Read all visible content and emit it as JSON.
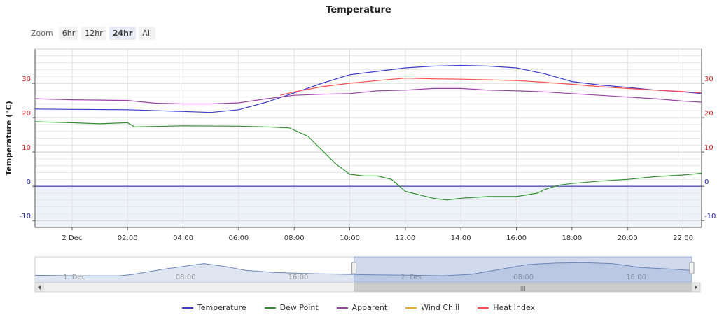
{
  "chart_data": {
    "type": "line",
    "title": "Temperature",
    "ylabel": "Temperature (°C)",
    "ylim": [
      -12,
      40
    ],
    "y_ticks_left": [
      "-10",
      "0",
      "10",
      "20",
      "30"
    ],
    "y_ticks_right": [
      "-10",
      "0",
      "10",
      "20",
      "30"
    ],
    "xlim": [
      "2023-12-01T22:40",
      "2023-12-02T22:40"
    ],
    "x_ticks": [
      {
        "t": "2023-12-02T00:00",
        "label": "2 Dec"
      },
      {
        "t": "2023-12-02T02:00",
        "label": "02:00"
      },
      {
        "t": "2023-12-02T04:00",
        "label": "04:00"
      },
      {
        "t": "2023-12-02T06:00",
        "label": "06:00"
      },
      {
        "t": "2023-12-02T08:00",
        "label": "08:00"
      },
      {
        "t": "2023-12-02T10:00",
        "label": "10:00"
      },
      {
        "t": "2023-12-02T12:00",
        "label": "12:00"
      },
      {
        "t": "2023-12-02T14:00",
        "label": "14:00"
      },
      {
        "t": "2023-12-02T16:00",
        "label": "16:00"
      },
      {
        "t": "2023-12-02T18:00",
        "label": "18:00"
      },
      {
        "t": "2023-12-02T20:00",
        "label": "20:00"
      },
      {
        "t": "2023-12-02T22:00",
        "label": "22:00"
      }
    ],
    "zero_band_color": "#eef3f9",
    "series": [
      {
        "name": "Temperature",
        "color": "#3b3bd1",
        "x": [
          "2023-12-01T22:40",
          "2023-12-02T00:00",
          "2023-12-02T02:00",
          "2023-12-02T04:00",
          "2023-12-02T05:00",
          "2023-12-02T06:00",
          "2023-12-02T07:00",
          "2023-12-02T08:00",
          "2023-12-02T09:00",
          "2023-12-02T10:00",
          "2023-12-02T11:00",
          "2023-12-02T12:00",
          "2023-12-02T13:00",
          "2023-12-02T14:00",
          "2023-12-02T15:00",
          "2023-12-02T16:00",
          "2023-12-02T17:00",
          "2023-12-02T18:00",
          "2023-12-02T19:00",
          "2023-12-02T20:00",
          "2023-12-02T21:00",
          "2023-12-02T22:00",
          "2023-12-02T22:40"
        ],
        "y": [
          22.5,
          22.4,
          22.3,
          21.8,
          21.5,
          22.3,
          24.5,
          27.2,
          30.0,
          32.5,
          33.5,
          34.5,
          35.0,
          35.2,
          35.0,
          34.5,
          32.8,
          30.5,
          29.5,
          28.8,
          28.0,
          27.5,
          27.0
        ]
      },
      {
        "name": "Dew Point",
        "color": "#2f8f2f",
        "x": [
          "2023-12-01T22:40",
          "2023-12-02T00:00",
          "2023-12-02T01:00",
          "2023-12-02T02:00",
          "2023-12-02T02:15",
          "2023-12-02T04:00",
          "2023-12-02T06:00",
          "2023-12-02T07:00",
          "2023-12-02T07:50",
          "2023-12-02T08:30",
          "2023-12-02T09:00",
          "2023-12-02T09:30",
          "2023-12-02T10:00",
          "2023-12-02T10:30",
          "2023-12-02T11:00",
          "2023-12-02T11:30",
          "2023-12-02T12:00",
          "2023-12-02T12:30",
          "2023-12-02T13:00",
          "2023-12-02T13:30",
          "2023-12-02T14:00",
          "2023-12-02T15:00",
          "2023-12-02T16:00",
          "2023-12-02T16:45",
          "2023-12-02T17:00",
          "2023-12-02T17:30",
          "2023-12-02T18:00",
          "2023-12-02T19:00",
          "2023-12-02T20:00",
          "2023-12-02T21:00",
          "2023-12-02T22:00",
          "2023-12-02T22:40"
        ],
        "y": [
          18.8,
          18.5,
          18.2,
          18.5,
          17.3,
          17.6,
          17.5,
          17.3,
          17.0,
          14.5,
          10.5,
          6.5,
          3.5,
          3.0,
          3.0,
          2.0,
          -1.5,
          -2.5,
          -3.5,
          -4.0,
          -3.5,
          -3.0,
          -3.0,
          -2.0,
          -1.0,
          0.3,
          0.8,
          1.5,
          2.0,
          2.8,
          3.3,
          3.8
        ]
      },
      {
        "name": "Apparent",
        "color": "#9c3fa8",
        "x": [
          "2023-12-01T22:40",
          "2023-12-02T00:00",
          "2023-12-02T02:00",
          "2023-12-02T03:00",
          "2023-12-02T04:00",
          "2023-12-02T05:00",
          "2023-12-02T06:00",
          "2023-12-02T07:00",
          "2023-12-02T08:00",
          "2023-12-02T09:00",
          "2023-12-02T10:00",
          "2023-12-02T11:00",
          "2023-12-02T12:00",
          "2023-12-02T13:00",
          "2023-12-02T14:00",
          "2023-12-02T15:00",
          "2023-12-02T16:00",
          "2023-12-02T17:00",
          "2023-12-02T18:00",
          "2023-12-02T19:00",
          "2023-12-02T20:00",
          "2023-12-02T21:00",
          "2023-12-02T22:00",
          "2023-12-02T22:40"
        ],
        "y": [
          25.5,
          25.2,
          25.0,
          24.2,
          24.0,
          24.0,
          24.3,
          25.5,
          26.5,
          26.8,
          27.0,
          27.8,
          28.0,
          28.5,
          28.5,
          28.0,
          27.8,
          27.5,
          27.0,
          26.5,
          26.0,
          25.5,
          24.8,
          24.5
        ]
      },
      {
        "name": "Wind Chill",
        "color": "#f5a623",
        "x": [],
        "y": []
      },
      {
        "name": "Heat Index",
        "color": "#ff4d4d",
        "x": [
          "2023-12-02T07:30",
          "2023-12-02T08:00",
          "2023-12-02T09:00",
          "2023-12-02T10:00",
          "2023-12-02T11:00",
          "2023-12-02T12:00",
          "2023-12-02T13:00",
          "2023-12-02T14:00",
          "2023-12-02T15:00",
          "2023-12-02T16:00",
          "2023-12-02T17:00",
          "2023-12-02T18:00",
          "2023-12-02T19:00",
          "2023-12-02T20:00",
          "2023-12-02T21:00",
          "2023-12-02T22:00",
          "2023-12-02T22:40"
        ],
        "y": [
          26.5,
          27.5,
          29.0,
          30.0,
          30.8,
          31.5,
          31.3,
          31.2,
          31.0,
          30.8,
          30.3,
          29.7,
          29.0,
          28.5,
          28.0,
          27.6,
          27.2
        ]
      }
    ]
  },
  "navigator": {
    "xlim": [
      "2023-12-01T00:00",
      "2023-12-02T22:40"
    ],
    "labels": [
      {
        "t": "2023-12-01T00:00",
        "label": "1. Dec"
      },
      {
        "t": "2023-12-01T08:00",
        "label": "08:00"
      },
      {
        "t": "2023-12-01T16:00",
        "label": "16:00"
      },
      {
        "t": "2023-12-02T00:00",
        "label": "2. Dec"
      },
      {
        "t": "2023-12-02T08:00",
        "label": "08:00"
      },
      {
        "t": "2023-12-02T16:00",
        "label": "16:00"
      }
    ],
    "selected_range": [
      "2023-12-01T22:40",
      "2023-12-02T22:40"
    ],
    "series_color": "#6b86b5",
    "x": [
      "2023-12-01T00:00",
      "2023-12-01T03:00",
      "2023-12-01T06:00",
      "2023-12-01T07:00",
      "2023-12-01T09:00",
      "2023-12-01T11:00",
      "2023-12-01T12:00",
      "2023-12-01T13:30",
      "2023-12-01T15:00",
      "2023-12-01T17:00",
      "2023-12-01T19:00",
      "2023-12-01T22:00",
      "2023-12-02T00:00",
      "2023-12-02T03:00",
      "2023-12-02T05:00",
      "2023-12-02T07:00",
      "2023-12-02T09:00",
      "2023-12-02T11:00",
      "2023-12-02T13:00",
      "2023-12-02T15:00",
      "2023-12-02T17:00",
      "2023-12-02T19:00",
      "2023-12-02T21:00",
      "2023-12-02T22:40"
    ],
    "y": [
      22,
      21.5,
      21.5,
      23,
      28,
      32,
      34,
      31,
      27,
      25,
      24,
      23,
      22.5,
      22,
      21.5,
      23,
      28,
      33,
      34.5,
      35,
      34,
      30,
      28.5,
      27
    ]
  },
  "zoom": {
    "label": "Zoom",
    "buttons": [
      "6hr",
      "12hr",
      "24hr",
      "All"
    ],
    "selected": "24hr"
  }
}
